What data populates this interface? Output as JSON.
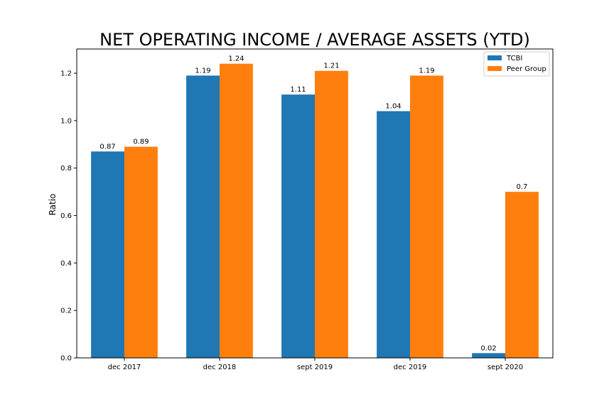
{
  "chart_data": {
    "type": "bar",
    "title": "NET OPERATING INCOME / AVERAGE ASSETS (YTD)",
    "xlabel": "",
    "ylabel": "Ratio",
    "categories": [
      "dec 2017",
      "dec 2018",
      "sept 2019",
      "dec 2019",
      "sept 2020"
    ],
    "series": [
      {
        "name": "TCBI",
        "values": [
          0.87,
          1.19,
          1.11,
          1.04,
          0.02
        ],
        "labels": [
          "0.87",
          "1.19",
          "1.11",
          "1.04",
          "0.02"
        ],
        "color": "#1f77b4"
      },
      {
        "name": "Peer Group",
        "values": [
          0.89,
          1.24,
          1.21,
          1.19,
          0.7
        ],
        "labels": [
          "0.89",
          "1.24",
          "1.21",
          "1.19",
          "0.7"
        ],
        "color": "#ff7f0e"
      }
    ],
    "ylim": [
      0,
      1.302
    ],
    "yticks": [
      "0.0",
      "0.2",
      "0.4",
      "0.6",
      "0.8",
      "1.0",
      "1.2"
    ],
    "grid": false,
    "legend_position": "top-right"
  }
}
